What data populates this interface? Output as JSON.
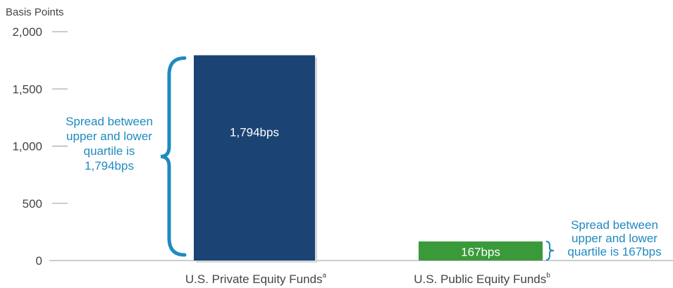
{
  "chart_data": {
    "type": "bar",
    "ylabel": "Basis Points",
    "ylim": [
      0,
      2000
    ],
    "yticks": [
      "2,000",
      "1,500",
      "1,000",
      "500",
      "0"
    ],
    "ytick_values": [
      2000,
      1500,
      1000,
      500,
      0
    ],
    "categories": [
      "U.S. Private Equity Funds",
      "U.S. Public Equity Funds"
    ],
    "category_footnotes": [
      "a",
      "b"
    ],
    "values": [
      1794,
      167
    ],
    "bar_labels": [
      "1,794bps",
      "167bps"
    ],
    "colors": [
      "#1b4474",
      "#3a9a3a"
    ],
    "annotations": [
      {
        "lines": [
          "Spread between",
          "upper and lower",
          "quartile is",
          "1,794bps"
        ],
        "color": "#1f8ac0"
      },
      {
        "lines": [
          "Spread between",
          "upper and lower",
          "quartile is 167bps"
        ],
        "color": "#1f8ac0"
      }
    ]
  }
}
